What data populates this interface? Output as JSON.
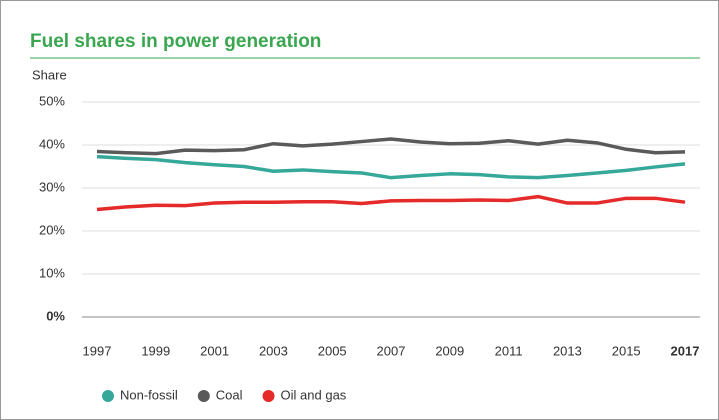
{
  "chart_data": {
    "type": "line",
    "title": "Fuel shares in power generation",
    "y_label": "Share",
    "x": [
      1997,
      1998,
      1999,
      2000,
      2001,
      2002,
      2003,
      2004,
      2005,
      2006,
      2007,
      2008,
      2009,
      2010,
      2011,
      2012,
      2013,
      2014,
      2015,
      2016,
      2017
    ],
    "xlim": [
      1997,
      2017
    ],
    "xticks": [
      1997,
      1999,
      2001,
      2003,
      2005,
      2007,
      2009,
      2011,
      2013,
      2015,
      2017
    ],
    "ylim": [
      0,
      50
    ],
    "yticks": [
      {
        "value": 0,
        "label": "0%"
      },
      {
        "value": 10,
        "label": "10%"
      },
      {
        "value": 20,
        "label": "20%"
      },
      {
        "value": 30,
        "label": "30%"
      },
      {
        "value": 40,
        "label": "40%"
      },
      {
        "value": 50,
        "label": "50%"
      }
    ],
    "grid": true,
    "series": [
      {
        "name": "Non-fossil",
        "color": "#35a89a",
        "values": [
          37.3,
          36.9,
          36.6,
          35.9,
          35.4,
          35.0,
          33.9,
          34.2,
          33.8,
          33.5,
          32.4,
          32.9,
          33.3,
          33.1,
          32.6,
          32.4,
          32.9,
          33.5,
          34.1,
          34.9,
          35.6
        ]
      },
      {
        "name": "Coal",
        "color": "#5a5a5a",
        "values": [
          38.5,
          38.2,
          38.0,
          38.8,
          38.7,
          38.9,
          40.3,
          39.8,
          40.2,
          40.8,
          41.4,
          40.7,
          40.3,
          40.4,
          41.0,
          40.2,
          41.1,
          40.5,
          39.0,
          38.2,
          38.4
        ]
      },
      {
        "name": "Oil and gas",
        "color": "#e52a2a",
        "values": [
          25.0,
          25.6,
          26.0,
          25.9,
          26.5,
          26.7,
          26.7,
          26.8,
          26.8,
          26.4,
          27.0,
          27.1,
          27.1,
          27.2,
          27.1,
          28.0,
          26.5,
          26.5,
          27.6,
          27.6,
          26.7
        ]
      }
    ]
  }
}
